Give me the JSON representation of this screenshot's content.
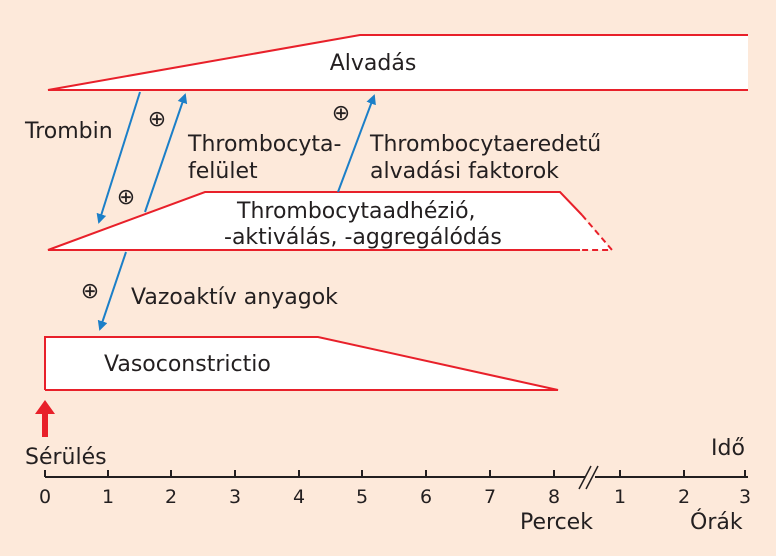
{
  "bands": {
    "coagulation": "Alvadás",
    "platelet": [
      "Thrombocytaadhézió,",
      "-aktiválás, -aggregálódás"
    ],
    "vaso": "Vasoconstrictio"
  },
  "labels": {
    "thrombin": "Trombin",
    "surface": [
      "Thrombocyta-",
      "felület"
    ],
    "factors": [
      "Thrombocytaeredetű",
      "alvadási faktorok"
    ],
    "vasoactive": "Vazoaktív anyagok",
    "plus": "⊕",
    "injury": "Sérülés"
  },
  "axis": {
    "title": "Idő",
    "minutes_ticks": [
      "0",
      "1",
      "2",
      "3",
      "4",
      "5",
      "6",
      "7",
      "8"
    ],
    "hours_ticks": [
      "1",
      "2",
      "3"
    ],
    "minutes_unit": "Percek",
    "hours_unit": "Órák"
  },
  "colors": {
    "band_outline": "#e8202a",
    "arrow": "#1b7fc8",
    "injury_arrow": "#e8202a",
    "background": "#fde9da"
  }
}
